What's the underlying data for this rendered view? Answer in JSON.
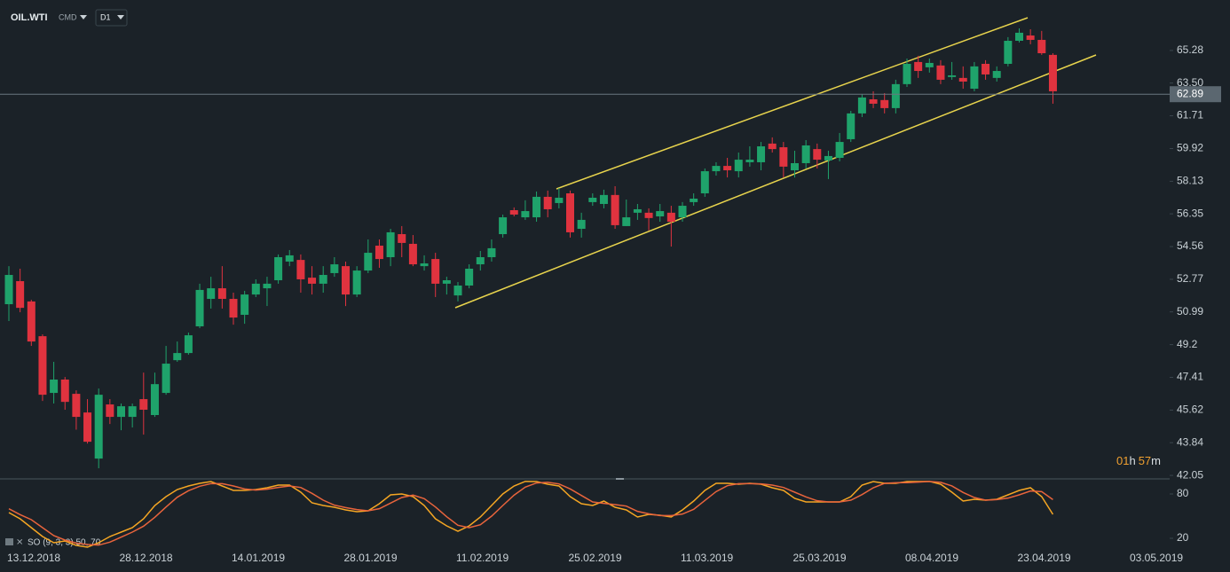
{
  "toolbar": {
    "symbol": "OIL.WTI",
    "market": "CMD",
    "timeframe": "D1"
  },
  "countdown": {
    "hours": "01",
    "hours_unit": "h",
    "minutes": "57",
    "minutes_unit": "m"
  },
  "chart_data": [
    {
      "type": "candlestick",
      "up_color": "#1fa36b",
      "down_color": "#e0333f",
      "categories": [
        "13.12.2018",
        null,
        null,
        null,
        null,
        null,
        null,
        null,
        null,
        null,
        "28.12.2018",
        null,
        null,
        null,
        null,
        null,
        null,
        null,
        null,
        null,
        "14.01.2019",
        null,
        null,
        null,
        null,
        null,
        null,
        null,
        null,
        null,
        "28.01.2019",
        null,
        null,
        null,
        null,
        null,
        null,
        null,
        null,
        null,
        "11.02.2019",
        null,
        null,
        null,
        null,
        null,
        null,
        null,
        null,
        null,
        "25.02.2019",
        null,
        null,
        null,
        null,
        null,
        null,
        null,
        null,
        null,
        "11.03.2019",
        null,
        null,
        null,
        null,
        null,
        null,
        null,
        null,
        null,
        "25.03.2019",
        null,
        null,
        null,
        null,
        null,
        null,
        null,
        null,
        null,
        "08.04.2019",
        null,
        null,
        null,
        null,
        null,
        null,
        null,
        null,
        null,
        "23.04.2019",
        null,
        null,
        null,
        null,
        null,
        null,
        null,
        null,
        null,
        "03.05.2019"
      ],
      "open": [
        51.41,
        52.67,
        51.56,
        49.66,
        46.56,
        47.29,
        46.51,
        45.49,
        42.97,
        45.93,
        45.25,
        45.25,
        46.22,
        45.35,
        46.56,
        48.35,
        48.74,
        50.2,
        51.7,
        52.28,
        51.7,
        50.83,
        51.94,
        52.28,
        52.72,
        53.74,
        53.83,
        52.86,
        52.53,
        53.11,
        53.49,
        51.94,
        53.25,
        54.61,
        53.98,
        55.24,
        54.71,
        53.49,
        53.88,
        52.53,
        51.89,
        52.43,
        53.59,
        53.98,
        55.24,
        56.55,
        56.16,
        56.16,
        57.28,
        56.94,
        57.47,
        55.53,
        56.99,
        56.89,
        57.38,
        55.68,
        56.41,
        56.41,
        56.21,
        56.41,
        56.16,
        56.99,
        57.47,
        58.68,
        58.97,
        58.68,
        59.17,
        59.17,
        60.19,
        59.99,
        58.73,
        59.12,
        59.89,
        59.27,
        59.41,
        60.43,
        61.84,
        62.61,
        62.57,
        62.13,
        63.44,
        64.65,
        64.36,
        64.46,
        63.83,
        63.78,
        63.19,
        64.55,
        63.78,
        64.55,
        65.81,
        66.1,
        65.86,
        65.04,
        null,
        null,
        null,
        null,
        null,
        null,
        null
      ],
      "high": [
        53.49,
        53.35,
        51.65,
        49.76,
        48.26,
        47.43,
        46.7,
        46.22,
        46.8,
        46.22,
        45.98,
        45.98,
        47.67,
        47.67,
        49.13,
        49.37,
        49.86,
        52.53,
        52.91,
        53.49,
        52.04,
        52.14,
        52.77,
        52.91,
        54.13,
        54.37,
        54.13,
        53.49,
        53.49,
        53.98,
        53.74,
        53.49,
        54.95,
        54.95,
        55.53,
        55.68,
        55.19,
        54.08,
        54.22,
        52.91,
        52.62,
        53.59,
        54.32,
        54.95,
        56.31,
        56.7,
        57.09,
        57.57,
        57.62,
        57.76,
        57.62,
        56.41,
        57.47,
        57.67,
        57.86,
        57.13,
        56.89,
        56.65,
        56.89,
        56.79,
        56.99,
        57.47,
        58.83,
        59.17,
        59.41,
        59.7,
        60.04,
        60.28,
        60.53,
        60.28,
        59.8,
        60.38,
        60.19,
        59.8,
        60.77,
        61.98,
        62.9,
        63.05,
        62.95,
        63.68,
        64.84,
        64.99,
        64.84,
        64.75,
        64.65,
        64.41,
        64.65,
        64.75,
        64.41,
        66.01,
        66.49,
        66.44,
        66.35,
        65.13,
        null,
        null,
        null,
        null,
        null,
        null,
        null
      ],
      "low": [
        50.49,
        50.97,
        49.13,
        46.12,
        45.98,
        45.64,
        44.55,
        43.79,
        42.44,
        44.86,
        44.52,
        44.67,
        44.28,
        45.25,
        46.46,
        48.26,
        48.65,
        50.1,
        51.17,
        51.17,
        50.29,
        50.34,
        51.8,
        51.31,
        52.53,
        53.49,
        52.04,
        51.94,
        52.04,
        52.91,
        51.31,
        51.8,
        53.11,
        53.4,
        53.49,
        53.98,
        53.49,
        53.25,
        51.8,
        51.94,
        51.56,
        52.28,
        53.25,
        53.74,
        55.05,
        56.21,
        56.02,
        55.92,
        56.16,
        56.65,
        55.05,
        55.05,
        56.79,
        56.65,
        55.53,
        55.68,
        56.02,
        55.44,
        55.92,
        54.56,
        55.92,
        56.79,
        57.28,
        58.44,
        58.34,
        58.34,
        58.93,
        58.73,
        59.7,
        58.34,
        58.34,
        58.83,
        58.83,
        58.25,
        59.22,
        60.28,
        61.64,
        62.13,
        61.84,
        61.84,
        63.29,
        63.78,
        64.07,
        63.44,
        63.68,
        63.19,
        63.05,
        63.68,
        63.58,
        64.41,
        65.72,
        65.62,
        65.04,
        62.37,
        null,
        null,
        null,
        null,
        null,
        null,
        null
      ],
      "close": [
        53.01,
        51.21,
        49.37,
        46.46,
        47.29,
        46.07,
        45.25,
        43.89,
        46.46,
        45.25,
        45.83,
        45.83,
        45.64,
        47.04,
        48.16,
        48.74,
        49.71,
        52.19,
        52.28,
        51.7,
        50.68,
        51.94,
        52.53,
        52.53,
        53.98,
        54.08,
        52.77,
        52.53,
        53.01,
        53.59,
        51.94,
        53.25,
        54.22,
        53.88,
        55.34,
        54.76,
        53.59,
        53.64,
        52.53,
        52.72,
        52.43,
        53.35,
        53.98,
        54.47,
        56.16,
        56.31,
        56.5,
        57.28,
        56.6,
        57.23,
        55.34,
        56.02,
        57.23,
        57.38,
        55.73,
        56.16,
        56.6,
        56.12,
        56.5,
        55.92,
        56.79,
        57.18,
        58.68,
        58.97,
        58.73,
        59.31,
        59.31,
        60.04,
        59.89,
        58.93,
        59.12,
        60.09,
        59.31,
        59.51,
        60.28,
        61.84,
        62.71,
        62.37,
        62.13,
        63.44,
        64.55,
        64.16,
        64.6,
        63.68,
        63.92,
        63.58,
        64.41,
        63.97,
        64.16,
        65.81,
        66.25,
        65.86,
        65.13,
        63.05,
        null,
        null,
        null,
        null,
        null,
        null,
        null
      ],
      "ylim": [
        41.86,
        68.04
      ],
      "yticks": [
        65.28,
        {
          "value": 63.5,
          "label": "63.50"
        },
        61.71,
        59.92,
        58.13,
        56.35,
        54.56,
        52.77,
        50.99,
        49.2,
        47.41,
        45.62,
        43.84,
        42.05
      ],
      "last_price": 62.89
    },
    {
      "type": "line",
      "title": "SO (9, 3, 3) 50, 70",
      "series": [
        {
          "color": "#f5a623",
          "values": [
            54.8,
            46.4,
            34.4,
            22.4,
            14,
            16.4,
            10.4,
            8,
            14,
            22.4,
            28.4,
            34.4,
            46.4,
            64.4,
            76.4,
            86,
            90.8,
            94.4,
            96.8,
            90.8,
            84.8,
            84.8,
            86,
            88.4,
            92,
            92,
            82.4,
            68,
            64.4,
            62,
            58.4,
            56,
            57.2,
            66.8,
            78.8,
            80,
            76.4,
            64.4,
            46.4,
            36.8,
            29.6,
            36.8,
            48.8,
            64.4,
            80,
            90.8,
            97,
            96.8,
            93.2,
            90.8,
            76.4,
            66.8,
            64.4,
            70.4,
            62,
            58.4,
            48.8,
            52.4,
            51.2,
            48.8,
            58.4,
            70.4,
            84.8,
            94.4,
            94.4,
            93.2,
            94.4,
            93.2,
            88.4,
            84.8,
            74,
            69.2,
            69.2,
            69.2,
            69.2,
            76.4,
            92,
            96.8,
            94.4,
            94.4,
            96.8,
            96.8,
            97,
            93.2,
            82.4,
            70.4,
            72.8,
            71.6,
            72.8,
            78.8,
            84.8,
            88.4,
            76.4,
            52.4,
            null,
            null,
            null,
            null,
            null,
            null,
            null
          ]
        },
        {
          "color": "#e8643c",
          "values": [
            60,
            52,
            45.2,
            34.4,
            23.6,
            17.6,
            13.6,
            11.6,
            10.8,
            14.8,
            21.6,
            28.4,
            36.4,
            48.4,
            62.4,
            75.6,
            84.4,
            90.4,
            94,
            94,
            90.8,
            86.8,
            85.2,
            86.4,
            88.8,
            90.8,
            88.8,
            80.8,
            71.6,
            64.8,
            61.6,
            58.8,
            57.2,
            60,
            67.6,
            75.2,
            78.4,
            73.6,
            62.4,
            49.2,
            37.6,
            34.4,
            38.4,
            50,
            64.4,
            78.4,
            89.3,
            94.9,
            95.7,
            93.6,
            86.8,
            78,
            69.2,
            67.2,
            65.6,
            63.6,
            56.4,
            53.2,
            50.8,
            50.8,
            52.8,
            59.2,
            71.2,
            83.2,
            91.2,
            94,
            94,
            93.6,
            92,
            88.8,
            82.4,
            76,
            70.8,
            69.2,
            69.2,
            71.6,
            79.2,
            88.4,
            94.4,
            95.2,
            95.3,
            96,
            96.9,
            95.7,
            90.9,
            82,
            75.2,
            71.6,
            72.4,
            74.4,
            78.8,
            84,
            83.2,
            72.4,
            null,
            null,
            null,
            null,
            null,
            null,
            null
          ]
        }
      ],
      "ylim": [
        4.4,
        98
      ],
      "yticks": [
        80,
        20
      ]
    }
  ]
}
